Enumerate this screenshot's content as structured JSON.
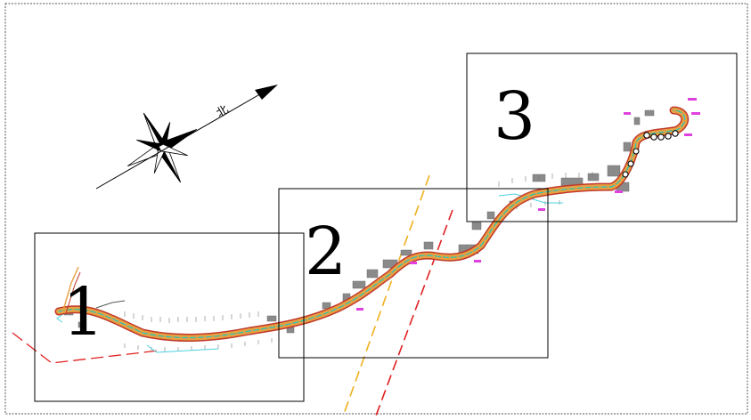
{
  "drawing": {
    "north_label": "北",
    "colors": {
      "background": "#ffffff",
      "border": "#555555",
      "frame": "#000000",
      "road_edge": "#c0392b",
      "road_fill": "#e8a040",
      "centerline": "#21c7c2",
      "buildings": "#8a8a8a",
      "dash_yellow": "#f0b020",
      "dash_red": "#e02020",
      "markers": "#e040e0",
      "compass": "#000000"
    },
    "sheets": [
      {
        "label": "1"
      },
      {
        "label": "2"
      },
      {
        "label": "3"
      }
    ]
  }
}
